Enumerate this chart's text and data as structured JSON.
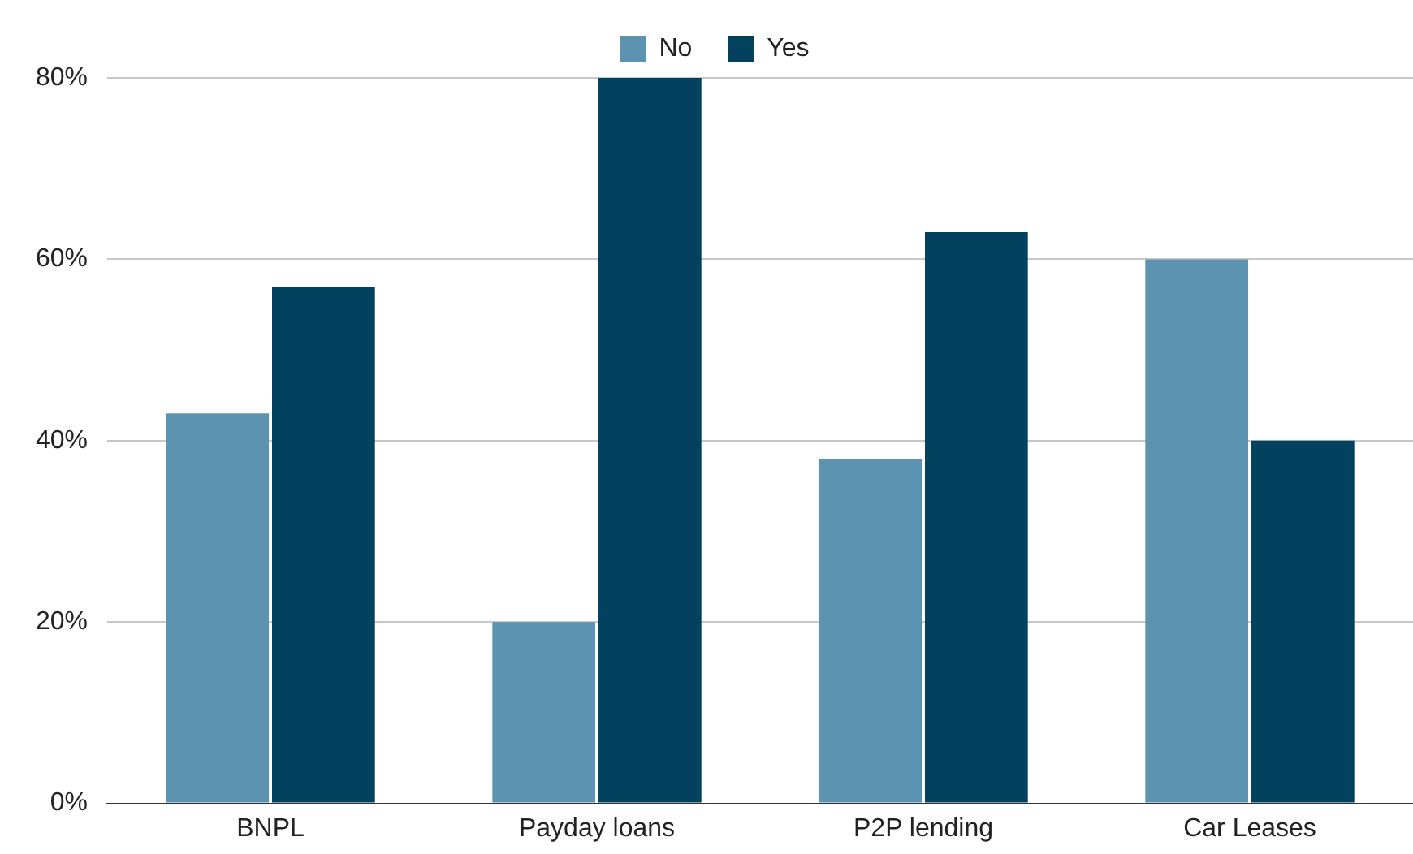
{
  "chart_data": {
    "type": "bar",
    "categories": [
      "BNPL",
      "Payday loans",
      "P2P lending",
      "Car Leases"
    ],
    "series": [
      {
        "name": "No",
        "color": "#5b93b0",
        "values": [
          43,
          20,
          38,
          60
        ]
      },
      {
        "name": "Yes",
        "color": "#02425e",
        "values": [
          57,
          80,
          63,
          40
        ]
      }
    ],
    "ylim": [
      0,
      80
    ],
    "yticks": [
      {
        "value": 0,
        "label": "0%"
      },
      {
        "value": 20,
        "label": "20%"
      },
      {
        "value": 40,
        "label": "40%"
      },
      {
        "value": 60,
        "label": "60%"
      },
      {
        "value": 80,
        "label": "80%"
      }
    ],
    "grid": "y",
    "legend": "top"
  }
}
